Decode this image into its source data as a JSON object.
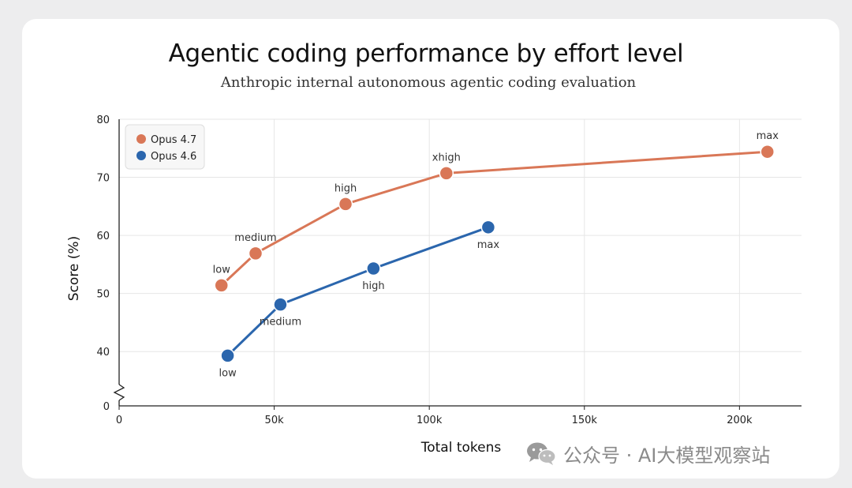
{
  "chart_data": {
    "type": "line",
    "title": "Agentic coding performance by effort level",
    "subtitle": "Anthropic internal autonomous agentic coding evaluation",
    "xlabel": "Total tokens",
    "ylabel": "Score (%)",
    "xlim": [
      0,
      220000
    ],
    "ylim": [
      0,
      80
    ],
    "y_axis_break": true,
    "y_break_between": [
      0,
      35
    ],
    "x_ticks": [
      0,
      50000,
      100000,
      150000,
      200000
    ],
    "x_tick_labels": [
      "0",
      "50k",
      "100k",
      "150k",
      "200k"
    ],
    "y_ticks": [
      0,
      40,
      50,
      60,
      70,
      80
    ],
    "y_tick_labels": [
      "0",
      "40",
      "50",
      "60",
      "70",
      "80"
    ],
    "grid": true,
    "legend_position": "top-left",
    "series": [
      {
        "name": "Opus 4.7",
        "color": "#d97757",
        "points": [
          {
            "x": 33000,
            "y": 51.4,
            "label": "low",
            "label_position": "above"
          },
          {
            "x": 44000,
            "y": 56.9,
            "label": "medium",
            "label_position": "above"
          },
          {
            "x": 73000,
            "y": 65.4,
            "label": "high",
            "label_position": "above"
          },
          {
            "x": 105500,
            "y": 70.7,
            "label": "xhigh",
            "label_position": "above"
          },
          {
            "x": 209000,
            "y": 74.4,
            "label": "max",
            "label_position": "above"
          }
        ]
      },
      {
        "name": "Opus 4.6",
        "color": "#2b66ad",
        "points": [
          {
            "x": 35000,
            "y": 39.3,
            "label": "low",
            "label_position": "below"
          },
          {
            "x": 52000,
            "y": 48.1,
            "label": "medium",
            "label_position": "below"
          },
          {
            "x": 82000,
            "y": 54.3,
            "label": "high",
            "label_position": "below"
          },
          {
            "x": 119000,
            "y": 61.4,
            "label": "max",
            "label_position": "below"
          }
        ]
      }
    ]
  },
  "watermark": {
    "text": "公众号 · AI大模型观察站",
    "icon": "wechat-icon"
  },
  "colors": {
    "page_background": "#ededee",
    "card_background": "#ffffff",
    "grid": "#e6e6e6",
    "axis": "#222222",
    "text": "#222222"
  }
}
